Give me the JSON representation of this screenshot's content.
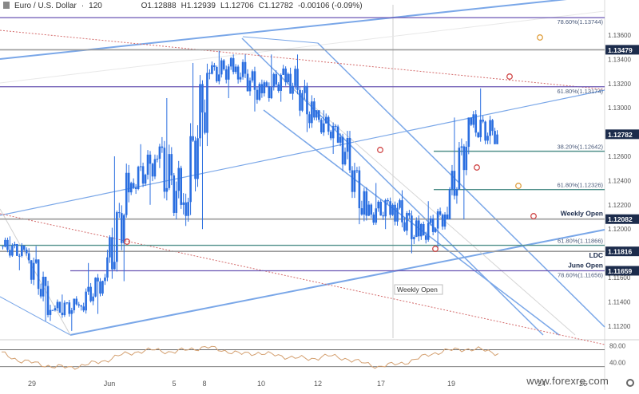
{
  "header": {
    "symbol": "Euro / U.S. Dollar",
    "separator": "·",
    "interval": "120",
    "open": "O1.12888",
    "high": "H1.12939",
    "low": "L1.12706",
    "close": "C1.12782",
    "change": "-0.00106 (-0.09%)"
  },
  "watermark": "www.forexre.com",
  "chart_data": {
    "type": "candlestick",
    "x_tick_labels": [
      "29",
      "Jun",
      "5",
      "8",
      "10",
      "12",
      "17",
      "19",
      "24",
      "26"
    ],
    "y_tick_labels": [
      "1.13600",
      "1.13400",
      "1.13200",
      "1.13000",
      "1.12600",
      "1.12400",
      "1.12200",
      "1.12000",
      "1.11600",
      "1.11400",
      "1.11200"
    ],
    "ylim": [
      1.111,
      1.1385
    ],
    "last_price": "1.12782",
    "series": [
      {
        "day": "May 28",
        "open": 1.1186,
        "close": 1.118,
        "high": 1.1194,
        "low": 1.1166
      },
      {
        "day": "May 29",
        "open": 1.118,
        "close": 1.1133,
        "high": 1.1186,
        "low": 1.1124
      },
      {
        "day": "May 30",
        "open": 1.1133,
        "close": 1.1137,
        "high": 1.1146,
        "low": 1.1116
      },
      {
        "day": "May 31",
        "open": 1.1137,
        "close": 1.116,
        "high": 1.1172,
        "low": 1.113
      },
      {
        "day": "Jun 3",
        "open": 1.116,
        "close": 1.1238,
        "high": 1.126,
        "low": 1.1157
      },
      {
        "day": "Jun 4",
        "open": 1.1238,
        "close": 1.1258,
        "high": 1.127,
        "low": 1.122
      },
      {
        "day": "Jun 5",
        "open": 1.1258,
        "close": 1.1222,
        "high": 1.1308,
        "low": 1.1208
      },
      {
        "day": "Jun 6",
        "open": 1.1222,
        "close": 1.1328,
        "high": 1.1337,
        "low": 1.12
      },
      {
        "day": "Jun 7",
        "open": 1.1328,
        "close": 1.1334,
        "high": 1.1347,
        "low": 1.1308
      },
      {
        "day": "Jun 10",
        "open": 1.1334,
        "close": 1.1312,
        "high": 1.1344,
        "low": 1.1297
      },
      {
        "day": "Jun 11",
        "open": 1.1312,
        "close": 1.1328,
        "high": 1.1344,
        "low": 1.1305
      },
      {
        "day": "Jun 12",
        "open": 1.1328,
        "close": 1.1292,
        "high": 1.1344,
        "low": 1.128
      },
      {
        "day": "Jun 13",
        "open": 1.1292,
        "close": 1.1276,
        "high": 1.1298,
        "low": 1.1262
      },
      {
        "day": "Jun 14",
        "open": 1.1276,
        "close": 1.1211,
        "high": 1.1281,
        "low": 1.1204
      },
      {
        "day": "Jun 17",
        "open": 1.1211,
        "close": 1.122,
        "high": 1.1238,
        "low": 1.12
      },
      {
        "day": "Jun 18",
        "open": 1.122,
        "close": 1.1194,
        "high": 1.1232,
        "low": 1.118
      },
      {
        "day": "Jun 19",
        "open": 1.1194,
        "close": 1.1212,
        "high": 1.1223,
        "low": 1.1184
      },
      {
        "day": "Jun 20",
        "open": 1.1212,
        "close": 1.1286,
        "high": 1.1292,
        "low": 1.1208
      },
      {
        "day": "Jun 21",
        "open": 1.1286,
        "close": 1.1278,
        "high": 1.1316,
        "low": 1.127
      }
    ],
    "levels": [
      {
        "label": "78.60%(1.13744)",
        "value": 1.13744,
        "style": "purple",
        "tag": "",
        "box": ""
      },
      {
        "label": "",
        "value": 1.13479,
        "style": "gray",
        "tag": "",
        "box": "1.13479"
      },
      {
        "label": "61.80%(1.13174)",
        "value": 1.13174,
        "style": "purple",
        "tag": "",
        "box": ""
      },
      {
        "label": "38.20%(1.12642)",
        "value": 1.12642,
        "style": "teal",
        "tag": "",
        "box": ""
      },
      {
        "label": "61.80%(1.12326)",
        "value": 1.12326,
        "style": "teal",
        "tag": "",
        "box": ""
      },
      {
        "label": "",
        "value": 1.12082,
        "style": "gray",
        "tag": "Weekly Open",
        "box": "1.12082"
      },
      {
        "label": "61.80%(1.11866)",
        "value": 1.11866,
        "style": "teal",
        "tag": "",
        "box": ""
      },
      {
        "label": "",
        "value": 1.11816,
        "style": "gray",
        "tag": "LDC",
        "box": "1.11816"
      },
      {
        "label": "78.60%(1.11656)",
        "value": 1.11656,
        "style": "purple",
        "tag": "June Open",
        "box": "1.11659"
      }
    ],
    "weekly_open_marker": "Weekly Open",
    "rsi": {
      "tick_labels": [
        "80.00",
        "40.00"
      ],
      "levels": [
        70,
        30
      ],
      "values": [
        62,
        45,
        38,
        30,
        28,
        35,
        44,
        58,
        66,
        70,
        64,
        72,
        76,
        68,
        60,
        63,
        57,
        52,
        48,
        56,
        50,
        40,
        30,
        36,
        44,
        60,
        68,
        72,
        70,
        62
      ]
    },
    "colors": {
      "candle": "#2a6ee0",
      "channel": "#7aa7e8",
      "purple_line": "#6a56b3",
      "gray_line": "#9a9a9a",
      "teal_line": "#4f8f8a",
      "red_dotted": "#d46b6b",
      "price_box": "#1c2c4c",
      "marker_red": "#d04848",
      "marker_orange": "#e0a040"
    }
  }
}
